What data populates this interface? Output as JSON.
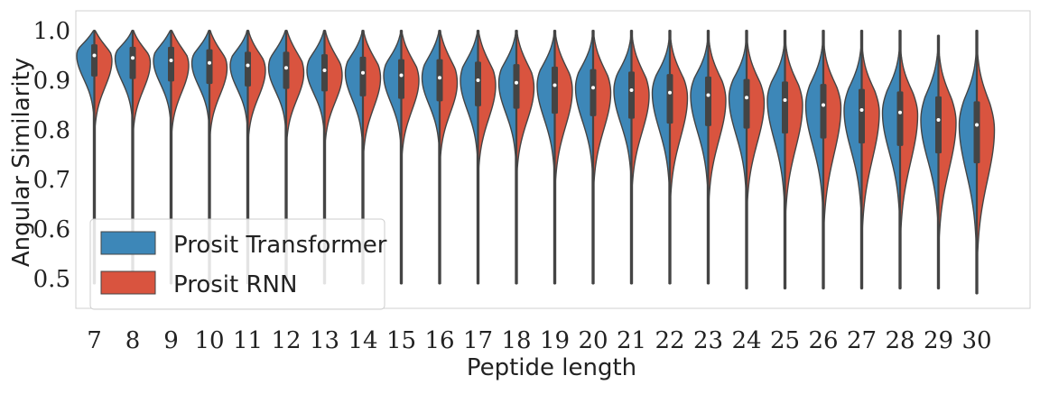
{
  "chart_data": {
    "type": "violin",
    "xlabel": "Peptide length",
    "ylabel": "Angular Similarity",
    "ylim": [
      0.44,
      1.04
    ],
    "yticks": [
      "0.5",
      "0.6",
      "0.7",
      "0.8",
      "0.9",
      "1.0"
    ],
    "categories": [
      "7",
      "8",
      "9",
      "10",
      "11",
      "12",
      "13",
      "14",
      "15",
      "16",
      "17",
      "18",
      "19",
      "20",
      "21",
      "22",
      "23",
      "24",
      "25",
      "26",
      "27",
      "28",
      "29",
      "30"
    ],
    "grid": false,
    "legend_position": "lower-left",
    "split": true,
    "series": [
      {
        "name": "Prosit Transformer",
        "color": "#3d87b8",
        "medians": [
          0.95,
          0.945,
          0.94,
          0.935,
          0.93,
          0.925,
          0.92,
          0.915,
          0.91,
          0.905,
          0.9,
          0.895,
          0.89,
          0.885,
          0.88,
          0.875,
          0.87,
          0.865,
          0.86,
          0.85,
          0.84,
          0.835,
          0.82,
          0.81
        ],
        "q1": [
          0.915,
          0.91,
          0.905,
          0.9,
          0.895,
          0.89,
          0.885,
          0.875,
          0.87,
          0.865,
          0.855,
          0.85,
          0.84,
          0.835,
          0.83,
          0.82,
          0.815,
          0.81,
          0.8,
          0.79,
          0.78,
          0.775,
          0.76,
          0.74
        ],
        "q3": [
          0.975,
          0.97,
          0.97,
          0.965,
          0.96,
          0.96,
          0.955,
          0.95,
          0.945,
          0.945,
          0.94,
          0.935,
          0.93,
          0.925,
          0.92,
          0.915,
          0.91,
          0.905,
          0.9,
          0.895,
          0.885,
          0.88,
          0.87,
          0.86
        ],
        "min": [
          0.49,
          0.49,
          0.49,
          0.49,
          0.49,
          0.49,
          0.49,
          0.49,
          0.49,
          0.49,
          0.49,
          0.49,
          0.49,
          0.49,
          0.49,
          0.49,
          0.49,
          0.48,
          0.48,
          0.48,
          0.48,
          0.48,
          0.48,
          0.47
        ],
        "max": [
          1.0,
          1.0,
          1.0,
          1.0,
          1.0,
          1.0,
          1.0,
          1.0,
          1.0,
          1.0,
          1.0,
          1.0,
          1.0,
          1.0,
          1.0,
          1.0,
          1.0,
          1.0,
          1.0,
          1.0,
          1.0,
          1.0,
          0.99,
          1.0
        ]
      },
      {
        "name": "Prosit RNN",
        "color": "#d9543f",
        "medians": [
          0.94,
          0.935,
          0.93,
          0.925,
          0.92,
          0.915,
          0.91,
          0.905,
          0.9,
          0.895,
          0.89,
          0.885,
          0.88,
          0.875,
          0.87,
          0.865,
          0.86,
          0.855,
          0.85,
          0.845,
          0.835,
          0.83,
          0.815,
          0.8
        ],
        "q1": [
          0.9,
          0.895,
          0.89,
          0.885,
          0.88,
          0.875,
          0.87,
          0.86,
          0.855,
          0.85,
          0.84,
          0.835,
          0.825,
          0.82,
          0.815,
          0.805,
          0.8,
          0.795,
          0.785,
          0.775,
          0.765,
          0.76,
          0.745,
          0.725
        ],
        "q3": [
          0.97,
          0.965,
          0.965,
          0.96,
          0.955,
          0.955,
          0.95,
          0.945,
          0.94,
          0.94,
          0.935,
          0.93,
          0.925,
          0.92,
          0.915,
          0.91,
          0.905,
          0.9,
          0.895,
          0.89,
          0.88,
          0.875,
          0.865,
          0.855
        ],
        "min": [
          0.49,
          0.49,
          0.49,
          0.49,
          0.49,
          0.49,
          0.49,
          0.49,
          0.49,
          0.49,
          0.49,
          0.49,
          0.49,
          0.49,
          0.49,
          0.49,
          0.49,
          0.48,
          0.48,
          0.48,
          0.48,
          0.48,
          0.48,
          0.47
        ],
        "max": [
          1.0,
          1.0,
          1.0,
          1.0,
          1.0,
          1.0,
          1.0,
          1.0,
          1.0,
          1.0,
          1.0,
          1.0,
          1.0,
          1.0,
          1.0,
          1.0,
          1.0,
          1.0,
          1.0,
          1.0,
          1.0,
          1.0,
          0.99,
          1.0
        ]
      }
    ]
  }
}
